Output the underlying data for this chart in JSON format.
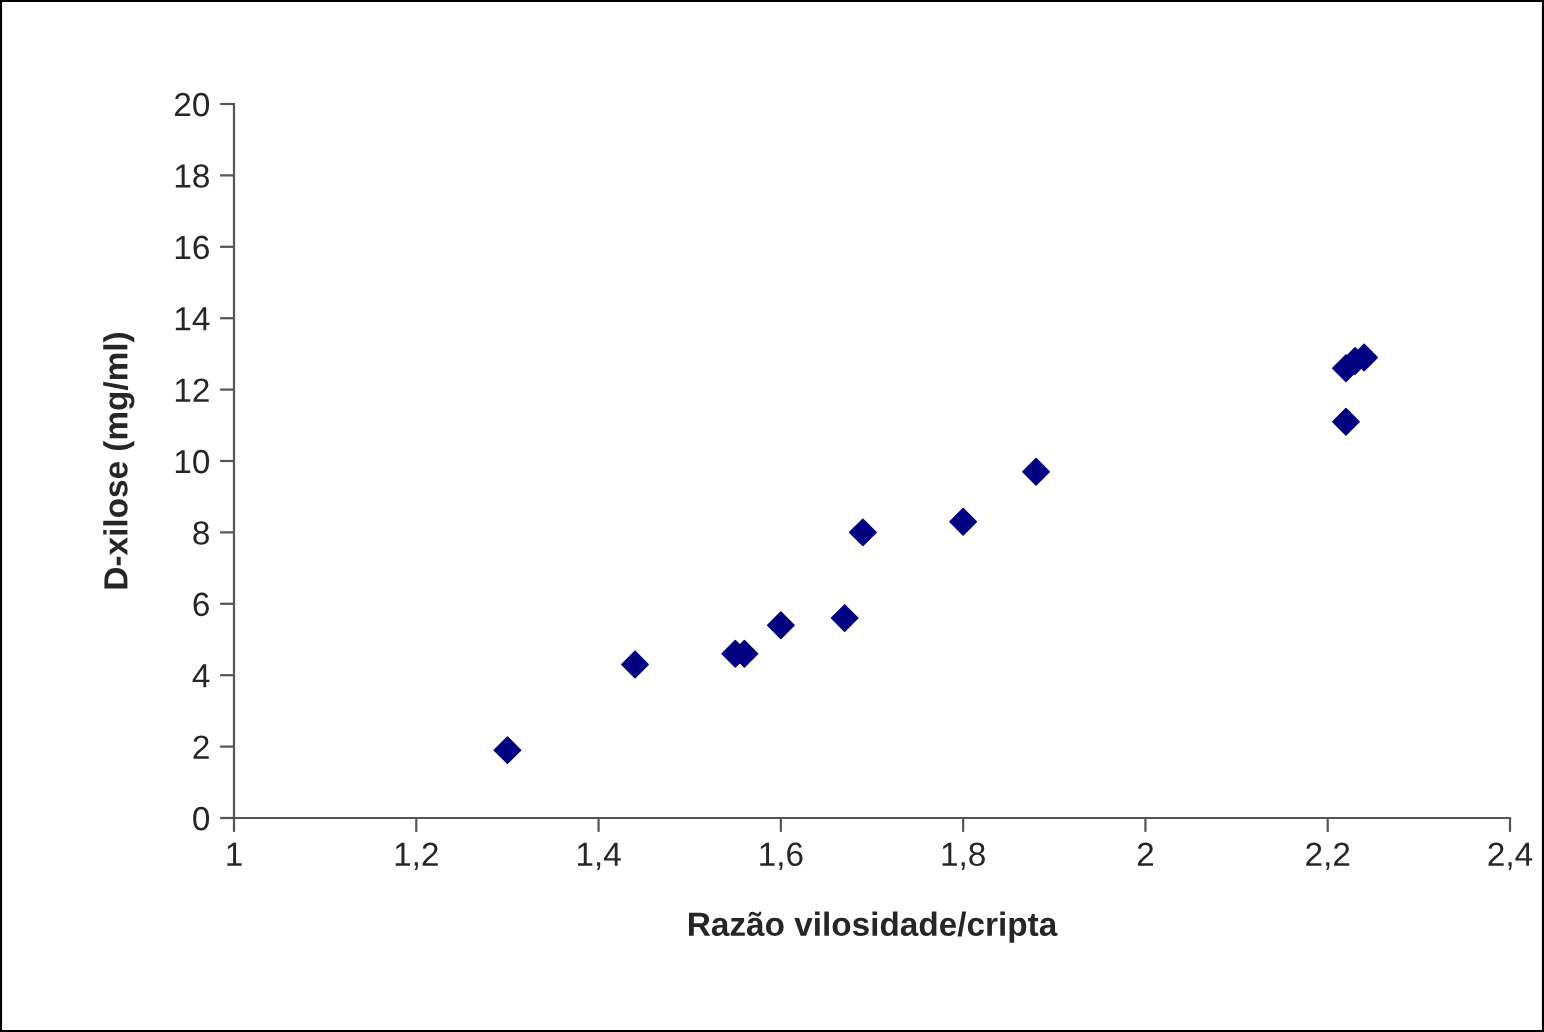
{
  "chart_data": {
    "type": "scatter",
    "xlabel": "Razão vilosidade/cripta",
    "ylabel": "D-xilose (mg/ml)",
    "x": [
      1.3,
      1.44,
      1.55,
      1.56,
      1.6,
      1.67,
      1.69,
      1.8,
      1.88,
      2.22,
      2.22,
      2.23,
      2.24
    ],
    "series": [
      {
        "color": "#000080",
        "values": [
          1.9,
          4.3,
          4.6,
          4.6,
          5.4,
          5.6,
          8.0,
          8.3,
          9.7,
          11.1,
          12.6,
          12.8,
          12.9
        ]
      }
    ],
    "marker": "diamond",
    "xlim": [
      1,
      2.4
    ],
    "ylim": [
      0,
      20
    ],
    "xticks": [
      {
        "value": 1,
        "label": "1"
      },
      {
        "value": 1.2,
        "label": "1,2"
      },
      {
        "value": 1.4,
        "label": "1,4"
      },
      {
        "value": 1.6,
        "label": "1,6"
      },
      {
        "value": 1.8,
        "label": "1,8"
      },
      {
        "value": 2,
        "label": "2"
      },
      {
        "value": 2.2,
        "label": "2,2"
      },
      {
        "value": 2.4,
        "label": "2,4"
      }
    ],
    "yticks": [
      0,
      2,
      4,
      6,
      8,
      10,
      12,
      14,
      16,
      18,
      20
    ],
    "grid": false,
    "legend": false
  }
}
